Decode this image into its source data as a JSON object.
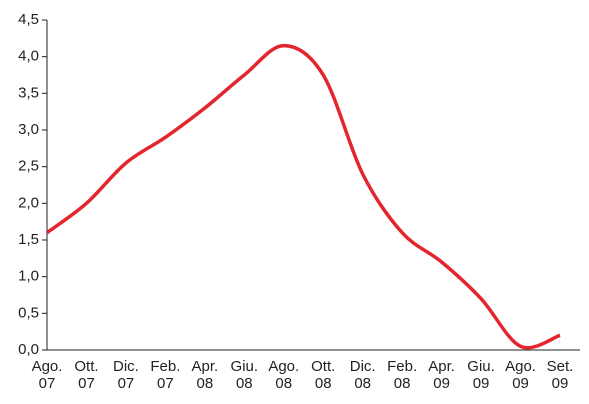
{
  "chart_data": {
    "type": "line",
    "categories": [
      "Ago.\n07",
      "Ott.\n07",
      "Dic.\n07",
      "Feb.\n07",
      "Apr.\n08",
      "Giu.\n08",
      "Ago.\n08",
      "Ott.\n08",
      "Dic.\n08",
      "Feb.\n08",
      "Apr.\n09",
      "Giu.\n09",
      "Ago.\n09",
      "Set.\n09"
    ],
    "values": [
      1.6,
      2.0,
      2.55,
      2.9,
      3.3,
      3.75,
      4.15,
      3.75,
      2.4,
      1.6,
      1.2,
      0.7,
      0.05,
      0.2
    ],
    "color": "#e3262e",
    "ylim": [
      0,
      4.5
    ],
    "yticks": [
      {
        "value": 0,
        "label": "0,0"
      },
      {
        "value": 0.5,
        "label": "0,5"
      },
      {
        "value": 1,
        "label": "1,0"
      },
      {
        "value": 1.5,
        "label": "1,5"
      },
      {
        "value": 2,
        "label": "2,0"
      },
      {
        "value": 2.5,
        "label": "2,5"
      },
      {
        "value": 3,
        "label": "3,0"
      },
      {
        "value": 3.5,
        "label": "3,5"
      },
      {
        "value": 4,
        "label": "4,0"
      },
      {
        "value": 4.5,
        "label": "4,5"
      }
    ],
    "grid": false
  }
}
